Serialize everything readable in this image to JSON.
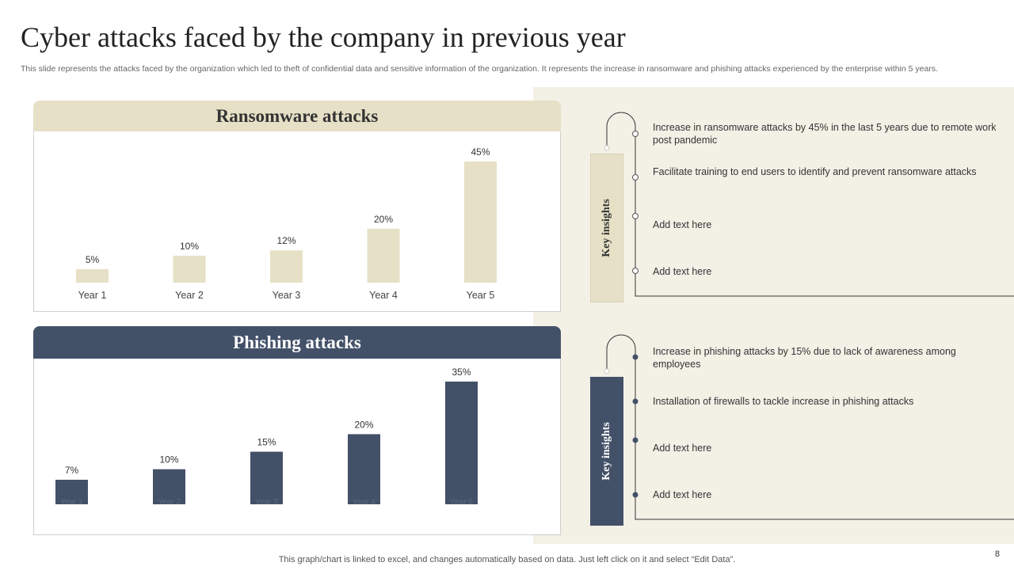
{
  "slide": {
    "title": "Cyber attacks faced by the company in previous year",
    "subtitle": "This slide represents the attacks faced by the organization which led to theft of confidential data and sensitive information of the organization. It represents the increase in ransomware and phishing attacks experienced by the enterprise within 5 years.",
    "footer": "This graph/chart is linked to excel,  and changes automatically based on data. Just left click on it and select “Edit Data”.",
    "page_number": "8"
  },
  "colors": {
    "ransom": "#e6e0c6",
    "phish": "#435168",
    "panel_bg": "#f3f0e6"
  },
  "chart_data": [
    {
      "type": "bar",
      "title": "Ransomware attacks",
      "categories": [
        "Year 1",
        "Year 2",
        "Year 3",
        "Year 4",
        "Year 5"
      ],
      "values": [
        5,
        10,
        12,
        20,
        45
      ],
      "data_labels": [
        "5%",
        "10%",
        "12%",
        "20%",
        "45%"
      ],
      "ylim": [
        0,
        45
      ],
      "grid": false,
      "bar_color": "#e6e0c6"
    },
    {
      "type": "bar",
      "title": "Phishing attacks",
      "categories": [
        "Year 1",
        "Year 2",
        "Year 3",
        "Year 4",
        "Year 5"
      ],
      "values": [
        7,
        10,
        15,
        20,
        35
      ],
      "data_labels": [
        "7%",
        "10%",
        "15%",
        "20%",
        "35%"
      ],
      "ylim": [
        0,
        35
      ],
      "grid": false,
      "bar_color": "#435168"
    }
  ],
  "insights": {
    "ransom": {
      "label": "Key insights",
      "items": [
        "Increase in ransomware  attacks by 45% in the last 5 years due to remote work post pandemic",
        "Facilitate training to end users to identify and prevent ransomware  attacks",
        "Add text here",
        "Add text here"
      ]
    },
    "phish": {
      "label": "Key insights",
      "items": [
        "Increase in phishing attacks by 15% due to lack of awareness among employees",
        "Installation of firewalls to tackle increase in phishing attacks",
        "Add text here",
        "Add text here"
      ]
    }
  }
}
